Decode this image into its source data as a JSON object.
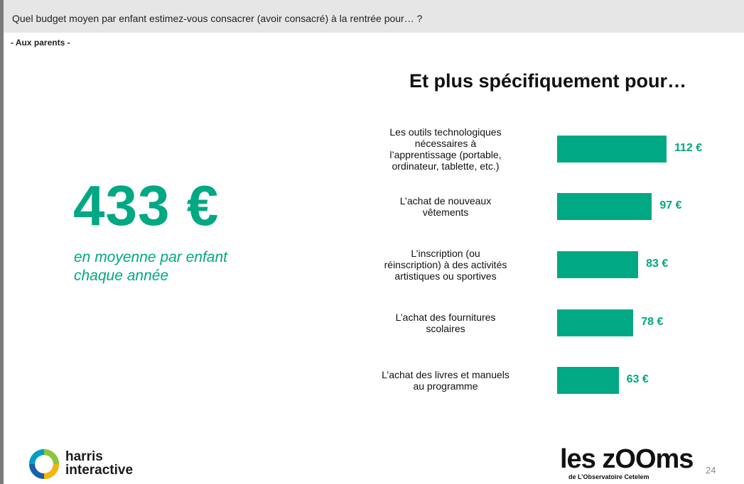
{
  "header": {
    "question": "Quel budget moyen par enfant estimez-vous consacrer (avoir consacré) à la rentrée pour… ?",
    "audience": "- Aux parents -"
  },
  "summary": {
    "amount": "433 €",
    "caption_line1": "en moyenne par enfant",
    "caption_line2": "chaque année"
  },
  "chart_data": {
    "type": "bar",
    "orientation": "horizontal",
    "title": "Et plus spécifiquement pour…",
    "categories": [
      "Les outils technologiques nécessaires à l’apprentissage (portable, ordinateur, tablette, etc.)",
      "L’achat de nouveaux vêtements",
      "L’inscription (ou réinscription) à des activités artistiques ou sportives",
      "L’achat des fournitures scolaires",
      "L’achat des livres et manuels au programme"
    ],
    "category_lines": [
      [
        "Les outils technologiques",
        "nécessaires à",
        "l’apprentissage (portable,",
        "ordinateur, tablette, etc.)"
      ],
      [
        "L’achat de nouveaux",
        "vêtements"
      ],
      [
        "L’inscription (ou",
        "réinscription) à des activités",
        "artistiques ou sportives"
      ],
      [
        "L’achat des fournitures",
        "scolaires"
      ],
      [
        "L’achat des livres et manuels",
        "au programme"
      ]
    ],
    "values": [
      112,
      97,
      83,
      78,
      63
    ],
    "value_labels": [
      "112 €",
      "97 €",
      "83 €",
      "78 €",
      "63 €"
    ],
    "unit": "€",
    "xlim": [
      0,
      140
    ],
    "grid": false,
    "bar_color": "#00a883"
  },
  "footer": {
    "logo_left_line1": "harris",
    "logo_left_line2": "interactive",
    "logo_right_main": "les zOOms",
    "logo_right_sub": "de L’Observatoire Cetelem",
    "page_number": "24"
  },
  "colors": {
    "accent": "#00a883",
    "header_bg": "#e6e6e6"
  }
}
